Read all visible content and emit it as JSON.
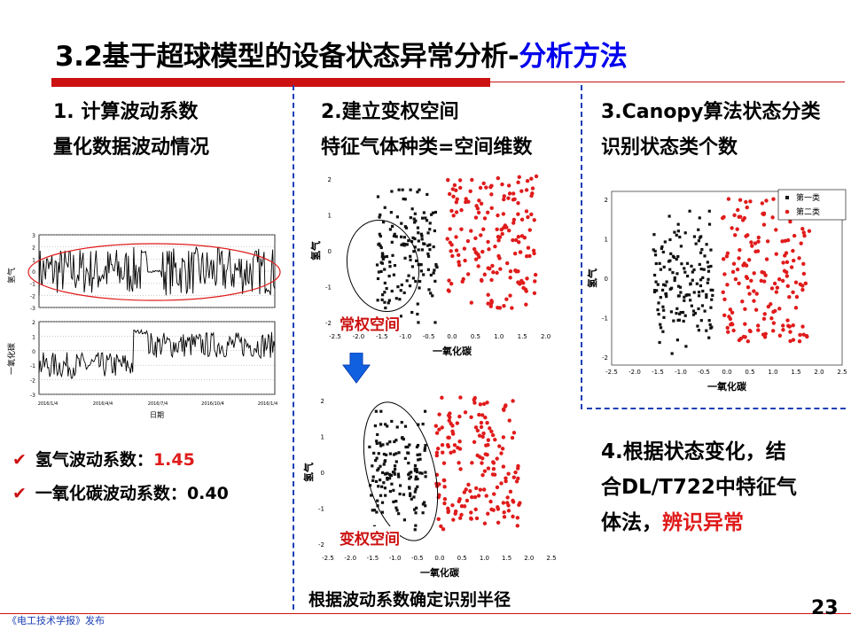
{
  "slide": {
    "title_main": "3.2基于超球模型的设备状态异常分析-",
    "title_accent": "分析方法",
    "page_number": "23",
    "footer": "《电工技术学报》发布"
  },
  "col1": {
    "heading1": "1.   计算波动系数",
    "heading2": "量化数据波动情况",
    "bullets": [
      {
        "label": "氢气波动系数：",
        "value": "1.45"
      },
      {
        "label": "一氧化碳波动系数：",
        "value": "0.40"
      }
    ]
  },
  "col2": {
    "heading1": "2.建立变权空间",
    "heading2": "特征气体种类=空间维数",
    "label_top": "常权空间",
    "label_bottom": "变权空间",
    "caption": "根据波动系数确定识别半径"
  },
  "col3": {
    "heading1": "3.Canopy算法状态分类",
    "heading2": "识别状态类个数",
    "step4_line1": "4.根据状态变化，结",
    "step4_line2": "合DL/T722中特征气",
    "step4_line3a": "体法，",
    "step4_line3b": "辨识异常"
  },
  "colors": {
    "accent_red": "#cc1111",
    "accent_blue": "#1a3fb5",
    "cluster2": "#e01b1b",
    "cluster1": "#111111"
  },
  "chart_data": [
    {
      "type": "line",
      "title": "",
      "ylabel": "氢气",
      "ylim": [
        -3,
        3
      ],
      "yticks": [
        "3",
        "2",
        "1",
        "0",
        "-1",
        "-2",
        "-3"
      ],
      "xticks": [
        "2016/1/4",
        "2016/4/4",
        "2016/7/4",
        "2016/10/4",
        "2016/1/4"
      ]
    },
    {
      "type": "line",
      "ylabel": "一氧化碳",
      "xlabel": "日期",
      "ylim": [
        -3,
        2
      ],
      "yticks": [
        "2",
        "1",
        "0",
        "-1",
        "-2",
        "-3"
      ],
      "xticks": [
        "2016/1/4",
        "2016/4/4",
        "2016/7/4",
        "2016/10/4",
        "2016/1/4"
      ]
    },
    {
      "type": "scatter",
      "xlabel": "一氧化碳",
      "ylabel": "氢气",
      "xlim": [
        -2.5,
        2.5
      ],
      "ylim": [
        -2.2,
        2.2
      ],
      "xticks": [
        "-2.5",
        "-2.0",
        "-1.5",
        "-1.0",
        "-0.5",
        "0.0",
        "0.5",
        "1.0",
        "1.5",
        "2.0",
        "2.5"
      ],
      "yticks": [
        "2",
        "1",
        "0",
        "-1",
        "-2"
      ],
      "series": [
        {
          "cluster": 1,
          "x_range": [
            -1.6,
            -0.3
          ],
          "y_range": [
            -2.0,
            1.7
          ]
        },
        {
          "cluster": 2,
          "x_range": [
            -0.1,
            1.8
          ],
          "y_range": [
            -1.6,
            2.1
          ]
        }
      ]
    },
    {
      "type": "scatter",
      "xlabel": "一氧化碳",
      "ylabel": "氢气",
      "xlim": [
        -2.5,
        2.5
      ],
      "ylim": [
        -2.2,
        2.2
      ],
      "xticks": [
        "-2.5",
        "-2.0",
        "-1.5",
        "-1.0",
        "-0.5",
        "0.0",
        "0.5",
        "1.0",
        "1.5",
        "2.0",
        "2.5"
      ],
      "yticks": [
        "2",
        "1",
        "0",
        "-1",
        "-2"
      ],
      "series": [
        {
          "cluster": 1,
          "x_range": [
            -1.6,
            -0.3
          ],
          "y_range": [
            -2.0,
            1.7
          ]
        },
        {
          "cluster": 2,
          "x_range": [
            -0.1,
            1.8
          ],
          "y_range": [
            -1.6,
            2.1
          ]
        }
      ]
    },
    {
      "type": "scatter",
      "xlabel": "一氧化碳",
      "ylabel": "氢气",
      "xlim": [
        -2.5,
        2.5
      ],
      "ylim": [
        -2.2,
        2.2
      ],
      "xticks": [
        "-2.5",
        "-2.0",
        "-1.5",
        "-1.0",
        "-0.5",
        "0.0",
        "0.5",
        "1.0",
        "1.5",
        "2.0",
        "2.5"
      ],
      "yticks": [
        "2",
        "1",
        "0",
        "-1",
        "-2"
      ],
      "legend": [
        "第一类",
        "第二类"
      ],
      "legend_position": "top-right",
      "series": [
        {
          "name": "第一类",
          "cluster": 1,
          "x_range": [
            -1.6,
            -0.3
          ],
          "y_range": [
            -2.0,
            1.7
          ]
        },
        {
          "name": "第二类",
          "cluster": 2,
          "x_range": [
            -0.1,
            1.8
          ],
          "y_range": [
            -1.6,
            2.1
          ]
        }
      ]
    }
  ]
}
